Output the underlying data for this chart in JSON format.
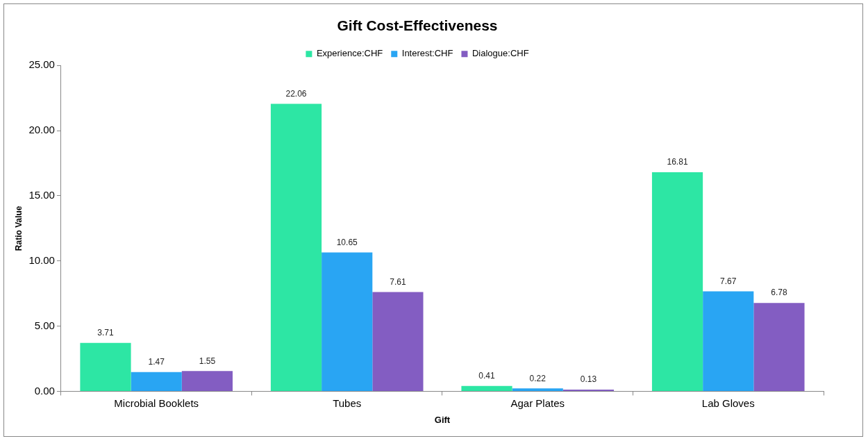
{
  "chart_data": {
    "type": "bar",
    "title": "Gift Cost-Effectiveness",
    "xlabel": "Gift",
    "ylabel": "Ratio Value",
    "categories": [
      "Microbial Booklets",
      "Tubes",
      "Agar Plates",
      "Lab Gloves"
    ],
    "series": [
      {
        "name": "Experience:CHF",
        "color": "#2de6a4",
        "values": [
          3.71,
          22.06,
          0.41,
          16.81
        ]
      },
      {
        "name": "Interest:CHF",
        "color": "#29a5f3",
        "values": [
          1.47,
          10.65,
          0.22,
          7.67
        ]
      },
      {
        "name": "Dialogue:CHF",
        "color": "#835dc2",
        "values": [
          1.55,
          7.61,
          0.13,
          6.78
        ]
      }
    ],
    "ylim": [
      0,
      25
    ],
    "yticks": [
      {
        "value": 0,
        "label": "0.00"
      },
      {
        "value": 5,
        "label": "5.00"
      },
      {
        "value": 10,
        "label": "10.00"
      },
      {
        "value": 15,
        "label": "15.00"
      },
      {
        "value": 20,
        "label": "20.00"
      },
      {
        "value": 25,
        "label": "25.00"
      }
    ],
    "grid": false,
    "legend": "top",
    "data_labels": true
  }
}
